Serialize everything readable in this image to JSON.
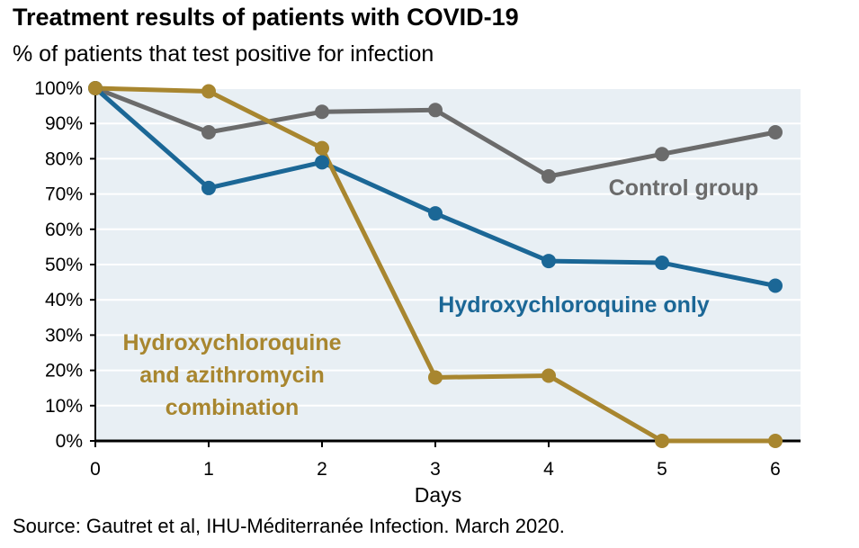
{
  "chart_data": {
    "type": "line",
    "title": "Treatment results of patients with COVID-19",
    "subtitle": "% of patients that test positive for infection",
    "xlabel": "Days",
    "ylabel": "",
    "x": [
      0,
      1,
      2,
      3,
      4,
      5,
      6
    ],
    "xlim": [
      0,
      6
    ],
    "ylim": [
      0,
      100
    ],
    "yticks": [
      "0%",
      "10%",
      "20%",
      "30%",
      "40%",
      "50%",
      "60%",
      "70%",
      "80%",
      "90%",
      "100%"
    ],
    "xticks": [
      "0",
      "1",
      "2",
      "3",
      "4",
      "5",
      "6"
    ],
    "grid": "horizontal",
    "series": [
      {
        "name": "Control group",
        "color": "#6b6b6b",
        "values": [
          100,
          87.5,
          93.3,
          93.8,
          75,
          81.3,
          87.5
        ],
        "label_lines": [
          "Control group"
        ]
      },
      {
        "name": "Hydroxychloroquine only",
        "color": "#1b6796",
        "values": [
          100,
          71.7,
          79,
          64.5,
          51,
          50.5,
          44
        ],
        "label_lines": [
          "Hydroxychloroquine only"
        ]
      },
      {
        "name": "Hydroxychloroquine and azithromycin combination",
        "color": "#a8862f",
        "values": [
          100,
          99.1,
          83,
          18,
          18.5,
          0,
          0
        ],
        "label_lines": [
          "Hydroxychloroquine",
          "and azithromycin",
          "combination"
        ]
      }
    ],
    "source": "Source: Gautret et al, IHU-Méditerranée Infection. March 2020."
  }
}
